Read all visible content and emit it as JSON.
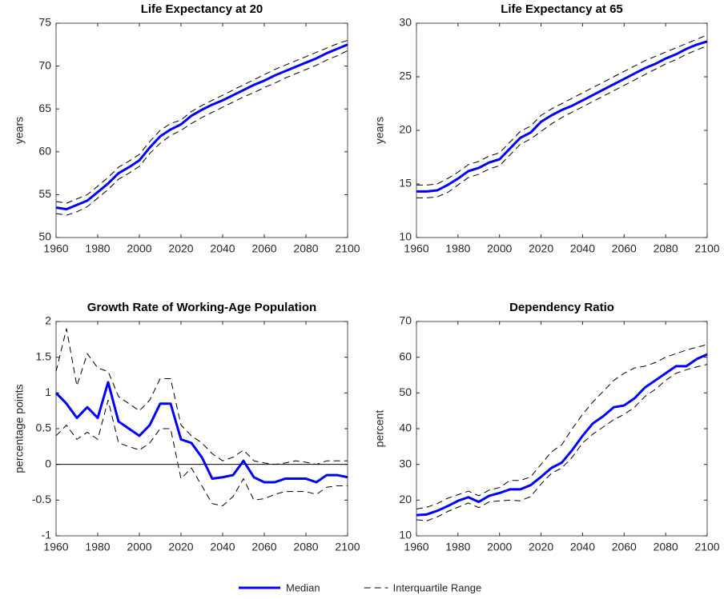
{
  "chart_data": [
    {
      "type": "line",
      "title": "Life Expectancy at 20",
      "ylabel": "years",
      "x": [
        1960,
        1965,
        1970,
        1975,
        1980,
        1985,
        1990,
        1995,
        2000,
        2005,
        2010,
        2015,
        2020,
        2025,
        2030,
        2035,
        2040,
        2045,
        2050,
        2055,
        2060,
        2065,
        2070,
        2075,
        2080,
        2085,
        2090,
        2095,
        2100
      ],
      "xlim": [
        1960,
        2100
      ],
      "xticks": [
        1960,
        1980,
        2000,
        2020,
        2040,
        2060,
        2080,
        2100
      ],
      "ylim": [
        50,
        75
      ],
      "yticks": [
        50,
        55,
        60,
        65,
        70,
        75
      ],
      "series": [
        {
          "color": "#0000ff",
          "width": 3,
          "dashed": false,
          "values": [
            53.5,
            53.3,
            53.8,
            54.3,
            55.3,
            56.3,
            57.5,
            58.2,
            59.0,
            60.5,
            61.8,
            62.6,
            63.2,
            64.2,
            64.9,
            65.5,
            66.0,
            66.6,
            67.2,
            67.8,
            68.3,
            68.9,
            69.4,
            69.9,
            70.4,
            70.9,
            71.5,
            72.0,
            72.5
          ]
        },
        {
          "color": "#000000",
          "width": 1,
          "dashed": true,
          "values": [
            52.8,
            52.6,
            53.0,
            53.6,
            54.6,
            55.6,
            56.8,
            57.5,
            58.3,
            59.8,
            61.0,
            61.9,
            62.5,
            63.3,
            64.0,
            64.6,
            65.2,
            65.8,
            66.4,
            66.9,
            67.5,
            68.0,
            68.6,
            69.1,
            69.6,
            70.1,
            70.7,
            71.2,
            71.8
          ]
        },
        {
          "color": "#000000",
          "width": 1,
          "dashed": true,
          "values": [
            54.2,
            54.0,
            54.5,
            55.0,
            56.0,
            57.0,
            58.2,
            58.9,
            59.7,
            61.2,
            62.5,
            63.3,
            63.7,
            64.7,
            65.4,
            66.0,
            66.6,
            67.2,
            67.8,
            68.4,
            69.0,
            69.6,
            70.1,
            70.6,
            71.1,
            71.6,
            72.1,
            72.6,
            73.0
          ]
        }
      ]
    },
    {
      "type": "line",
      "title": "Life Expectancy at 65",
      "ylabel": "years",
      "x": [
        1960,
        1965,
        1970,
        1975,
        1980,
        1985,
        1990,
        1995,
        2000,
        2005,
        2010,
        2015,
        2020,
        2025,
        2030,
        2035,
        2040,
        2045,
        2050,
        2055,
        2060,
        2065,
        2070,
        2075,
        2080,
        2085,
        2090,
        2095,
        2100
      ],
      "xlim": [
        1960,
        2100
      ],
      "xticks": [
        1960,
        1980,
        2000,
        2020,
        2040,
        2060,
        2080,
        2100
      ],
      "ylim": [
        10,
        30
      ],
      "yticks": [
        10,
        15,
        20,
        25,
        30
      ],
      "series": [
        {
          "color": "#0000ff",
          "width": 3,
          "dashed": false,
          "values": [
            14.3,
            14.3,
            14.4,
            14.9,
            15.5,
            16.2,
            16.5,
            17.0,
            17.3,
            18.3,
            19.3,
            19.8,
            20.8,
            21.4,
            21.9,
            22.3,
            22.8,
            23.3,
            23.8,
            24.3,
            24.8,
            25.3,
            25.8,
            26.2,
            26.7,
            27.1,
            27.6,
            28.0,
            28.3
          ]
        },
        {
          "color": "#000000",
          "width": 1,
          "dashed": true,
          "values": [
            13.7,
            13.7,
            13.8,
            14.2,
            14.9,
            15.6,
            15.9,
            16.4,
            16.7,
            17.7,
            18.7,
            19.2,
            19.9,
            20.6,
            21.2,
            21.7,
            22.2,
            22.7,
            23.2,
            23.7,
            24.2,
            24.7,
            25.2,
            25.7,
            26.2,
            26.6,
            27.1,
            27.5,
            27.9
          ]
        },
        {
          "color": "#000000",
          "width": 1,
          "dashed": true,
          "values": [
            14.9,
            14.9,
            15.0,
            15.5,
            16.1,
            16.8,
            17.1,
            17.6,
            17.9,
            18.9,
            19.9,
            20.4,
            21.4,
            22.0,
            22.5,
            23.0,
            23.5,
            24.0,
            24.5,
            25.0,
            25.5,
            26.0,
            26.5,
            26.9,
            27.3,
            27.7,
            28.1,
            28.5,
            28.9
          ]
        }
      ]
    },
    {
      "type": "line",
      "title": "Growth Rate of Working-Age Population",
      "ylabel": "percentage points",
      "x": [
        1960,
        1965,
        1970,
        1975,
        1980,
        1985,
        1990,
        1995,
        2000,
        2005,
        2010,
        2015,
        2020,
        2025,
        2030,
        2035,
        2040,
        2045,
        2050,
        2055,
        2060,
        2065,
        2070,
        2075,
        2080,
        2085,
        2090,
        2095,
        2100
      ],
      "xlim": [
        1960,
        2100
      ],
      "xticks": [
        1960,
        1980,
        2000,
        2020,
        2040,
        2060,
        2080,
        2100
      ],
      "ylim": [
        -1,
        2
      ],
      "yticks": [
        -1,
        -0.5,
        0,
        0.5,
        1,
        1.5,
        2
      ],
      "hline": 0,
      "series": [
        {
          "color": "#0000ff",
          "width": 3,
          "dashed": false,
          "values": [
            1.0,
            0.85,
            0.65,
            0.8,
            0.65,
            1.15,
            0.6,
            0.5,
            0.4,
            0.55,
            0.85,
            0.85,
            0.35,
            0.3,
            0.1,
            -0.2,
            -0.18,
            -0.15,
            0.05,
            -0.18,
            -0.25,
            -0.25,
            -0.2,
            -0.2,
            -0.2,
            -0.25,
            -0.15,
            -0.15,
            -0.18
          ]
        },
        {
          "color": "#000000",
          "width": 1,
          "dashed": true,
          "values": [
            0.4,
            0.55,
            0.35,
            0.45,
            0.35,
            0.9,
            0.3,
            0.25,
            0.2,
            0.3,
            0.5,
            0.5,
            -0.2,
            -0.05,
            -0.3,
            -0.55,
            -0.58,
            -0.45,
            -0.2,
            -0.5,
            -0.48,
            -0.42,
            -0.38,
            -0.38,
            -0.38,
            -0.42,
            -0.32,
            -0.3,
            -0.3
          ]
        },
        {
          "color": "#000000",
          "width": 1,
          "dashed": true,
          "values": [
            1.3,
            1.9,
            1.1,
            1.55,
            1.35,
            1.3,
            0.95,
            0.85,
            0.75,
            0.9,
            1.2,
            1.2,
            0.55,
            0.4,
            0.3,
            0.15,
            0.05,
            0.1,
            0.2,
            0.05,
            0.02,
            0.0,
            0.02,
            0.05,
            0.03,
            0.0,
            0.05,
            0.05,
            0.05
          ]
        }
      ]
    },
    {
      "type": "line",
      "title": "Dependency Ratio",
      "ylabel": "percent",
      "x": [
        1960,
        1965,
        1970,
        1975,
        1980,
        1985,
        1990,
        1995,
        2000,
        2005,
        2010,
        2015,
        2020,
        2025,
        2030,
        2035,
        2040,
        2045,
        2050,
        2055,
        2060,
        2065,
        2070,
        2075,
        2080,
        2085,
        2090,
        2095,
        2100
      ],
      "xlim": [
        1960,
        2100
      ],
      "xticks": [
        1960,
        1980,
        2000,
        2020,
        2040,
        2060,
        2080,
        2100
      ],
      "ylim": [
        10,
        70
      ],
      "yticks": [
        10,
        20,
        30,
        40,
        50,
        60,
        70
      ],
      "series": [
        {
          "color": "#0000ff",
          "width": 3,
          "dashed": false,
          "values": [
            15.8,
            16.0,
            17.0,
            18.3,
            19.8,
            20.8,
            19.5,
            21.2,
            22.0,
            23.0,
            23.0,
            24.2,
            26.5,
            29.0,
            30.5,
            34.0,
            38.0,
            41.5,
            43.5,
            46.0,
            46.5,
            48.5,
            51.5,
            53.5,
            55.5,
            57.5,
            57.5,
            59.5,
            60.8
          ]
        },
        {
          "color": "#000000",
          "width": 1,
          "dashed": true,
          "values": [
            14.5,
            14.2,
            15.3,
            16.8,
            18.0,
            19.2,
            17.9,
            19.5,
            19.8,
            20.0,
            19.8,
            21.0,
            24.5,
            27.5,
            29.0,
            32.0,
            36.0,
            38.5,
            40.5,
            42.5,
            44.0,
            46.0,
            49.0,
            51.0,
            53.5,
            55.5,
            56.5,
            57.3,
            58.0
          ]
        },
        {
          "color": "#000000",
          "width": 1,
          "dashed": true,
          "values": [
            17.5,
            18.0,
            19.0,
            20.5,
            21.5,
            22.5,
            21.2,
            22.8,
            23.5,
            25.5,
            25.5,
            26.5,
            30.0,
            33.5,
            35.5,
            40.0,
            44.0,
            47.5,
            50.5,
            53.5,
            55.5,
            57.0,
            57.5,
            58.5,
            60.0,
            61.0,
            62.0,
            62.8,
            63.5
          ]
        }
      ]
    }
  ],
  "legend": [
    {
      "name": "Median",
      "color": "#0000ff",
      "width": 3,
      "dashed": false
    },
    {
      "name": "Interquartile Range",
      "color": "#000000",
      "width": 1,
      "dashed": true
    }
  ]
}
